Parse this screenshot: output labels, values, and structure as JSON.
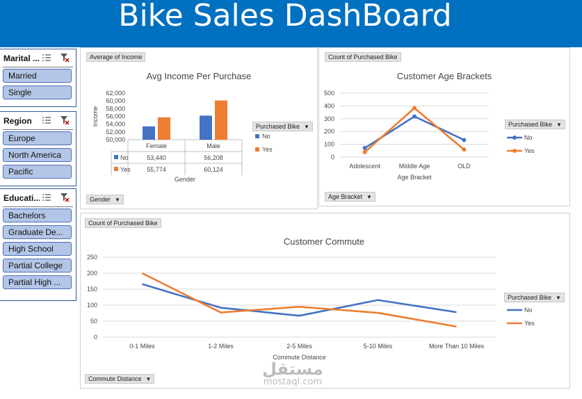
{
  "header": {
    "title": "Bike Sales DashBoard"
  },
  "slicers": [
    {
      "title": "Marital ...",
      "items": [
        "Married",
        "Single"
      ]
    },
    {
      "title": "Region",
      "items": [
        "Europe",
        "North America",
        "Pacific"
      ]
    },
    {
      "title": "Educati...",
      "items": [
        "Bachelors",
        "Graduate De...",
        "High School",
        "Partial College",
        "Partial High ..."
      ]
    }
  ],
  "colors": {
    "no": "#4472c4",
    "yes": "#ed7d31",
    "header": "#0070c0",
    "slicer_item": "#b4c6e7"
  },
  "panels": {
    "income": {
      "value_button": "Average of Income",
      "field_button": "Gender",
      "legend_button": "Purchased Bike"
    },
    "age": {
      "value_button": "Count of Purchased Bike",
      "field_button": "Age Bracket",
      "legend_button": "Purchased Bike"
    },
    "commute": {
      "value_button": "Count of Purchased Bike",
      "field_button": "Commute Distance",
      "legend_button": "Purchased Bike"
    }
  },
  "watermark": {
    "arabic": "مستقل",
    "latin": "mostaql.com"
  },
  "chart_data": [
    {
      "type": "bar",
      "title": "Avg Income Per Purchase",
      "xlabel": "Gender",
      "ylabel": "Income",
      "categories": [
        "Female",
        "Male"
      ],
      "series": [
        {
          "name": "No",
          "values": [
            53440,
            56208
          ],
          "labels": [
            "53,440",
            "56,208"
          ]
        },
        {
          "name": "Yes",
          "values": [
            55774,
            60124
          ],
          "labels": [
            "55,774",
            "60,124"
          ]
        }
      ],
      "ylim": [
        50000,
        62000
      ],
      "yticks": [
        "62,000",
        "60,000",
        "58,000",
        "56,000",
        "54,000",
        "52,000",
        "50,000"
      ],
      "data_table": true,
      "legend": "right"
    },
    {
      "type": "line",
      "title": "Customer Age Brackets",
      "xlabel": "Age Bracket",
      "ylabel": "",
      "categories": [
        "Adolescent",
        "Middle Age",
        "OLD"
      ],
      "series": [
        {
          "name": "No",
          "values": [
            71,
            318,
            134
          ]
        },
        {
          "name": "Yes",
          "values": [
            39,
            383,
            59
          ]
        }
      ],
      "ylim": [
        0,
        500
      ],
      "yticks": [
        "500",
        "400",
        "300",
        "200",
        "100",
        "0"
      ],
      "markers": true,
      "legend": "right"
    },
    {
      "type": "line",
      "title": "Customer Commute",
      "xlabel": "Commute Distance",
      "ylabel": "",
      "categories": [
        "0-1 Miles",
        "1-2 Miles",
        "2-5 Miles",
        "5-10 Miles",
        "More Than 10 Miles"
      ],
      "series": [
        {
          "name": "No",
          "values": [
            166,
            92,
            67,
            116,
            78
          ]
        },
        {
          "name": "Yes",
          "values": [
            200,
            77,
            95,
            76,
            33
          ]
        }
      ],
      "ylim": [
        0,
        250
      ],
      "yticks": [
        "250",
        "200",
        "150",
        "100",
        "50",
        "0"
      ],
      "legend": "right"
    }
  ]
}
